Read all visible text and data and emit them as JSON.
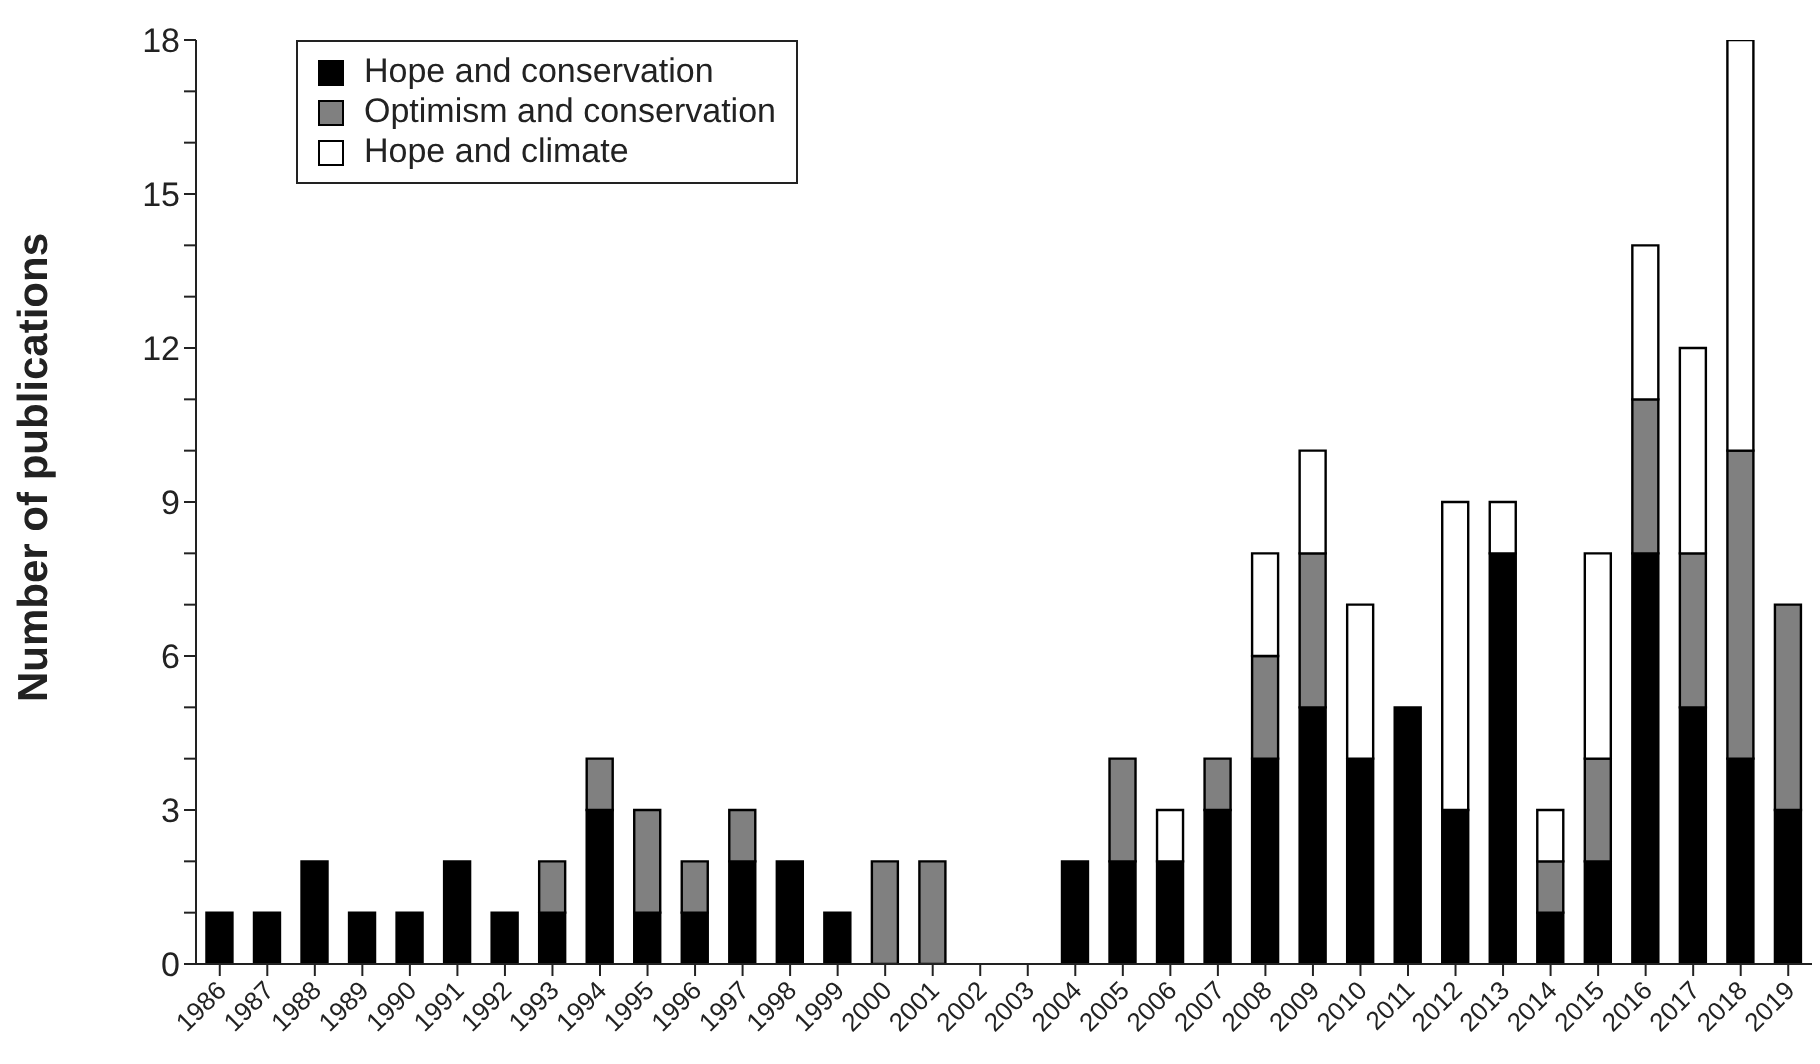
{
  "chart_data": {
    "type": "bar",
    "stacked": true,
    "ylabel": "Number of publications",
    "categories": [
      "1986",
      "1987",
      "1988",
      "1989",
      "1990",
      "1991",
      "1992",
      "1993",
      "1994",
      "1995",
      "1996",
      "1997",
      "1998",
      "1999",
      "2000",
      "2001",
      "2002",
      "2003",
      "2004",
      "2005",
      "2006",
      "2007",
      "2008",
      "2009",
      "2010",
      "2011",
      "2012",
      "2013",
      "2014",
      "2015",
      "2016",
      "2017",
      "2018",
      "2019"
    ],
    "series": [
      {
        "name": "Hope and conservation",
        "color": "#000000",
        "values": [
          1,
          1,
          2,
          1,
          1,
          2,
          1,
          1,
          3,
          1,
          1,
          2,
          2,
          1,
          0,
          0,
          0,
          0,
          2,
          2,
          2,
          3,
          4,
          5,
          4,
          5,
          3,
          8,
          1,
          2,
          8,
          5,
          4,
          3
        ]
      },
      {
        "name": "Optimism and conservation",
        "color": "#808080",
        "values": [
          0,
          0,
          0,
          0,
          0,
          0,
          0,
          1,
          1,
          2,
          1,
          1,
          0,
          0,
          2,
          2,
          0,
          0,
          0,
          2,
          0,
          1,
          2,
          3,
          0,
          0,
          0,
          0,
          1,
          2,
          3,
          3,
          6,
          4
        ]
      },
      {
        "name": "Hope and climate",
        "color": "#ffffff",
        "values": [
          0,
          0,
          0,
          0,
          0,
          0,
          0,
          0,
          0,
          0,
          0,
          0,
          0,
          0,
          0,
          0,
          0,
          0,
          0,
          0,
          1,
          0,
          2,
          2,
          3,
          0,
          6,
          1,
          1,
          4,
          3,
          4,
          8,
          0
        ]
      }
    ],
    "ylim": [
      0,
      18
    ],
    "yticks": [
      0,
      {
        "value": 1,
        "label": null
      },
      {
        "value": 2,
        "label": null
      },
      3,
      {
        "value": 4,
        "label": null
      },
      {
        "value": 5,
        "label": null
      },
      6,
      {
        "value": 7,
        "label": null
      },
      {
        "value": 8,
        "label": null
      },
      9,
      {
        "value": 10,
        "label": null
      },
      {
        "value": 11,
        "label": null
      },
      12,
      {
        "value": 13,
        "label": null
      },
      {
        "value": 14,
        "label": null
      },
      15,
      {
        "value": 16,
        "label": null
      },
      {
        "value": 17,
        "label": null
      },
      18
    ],
    "grid": false,
    "legend": "top left"
  }
}
